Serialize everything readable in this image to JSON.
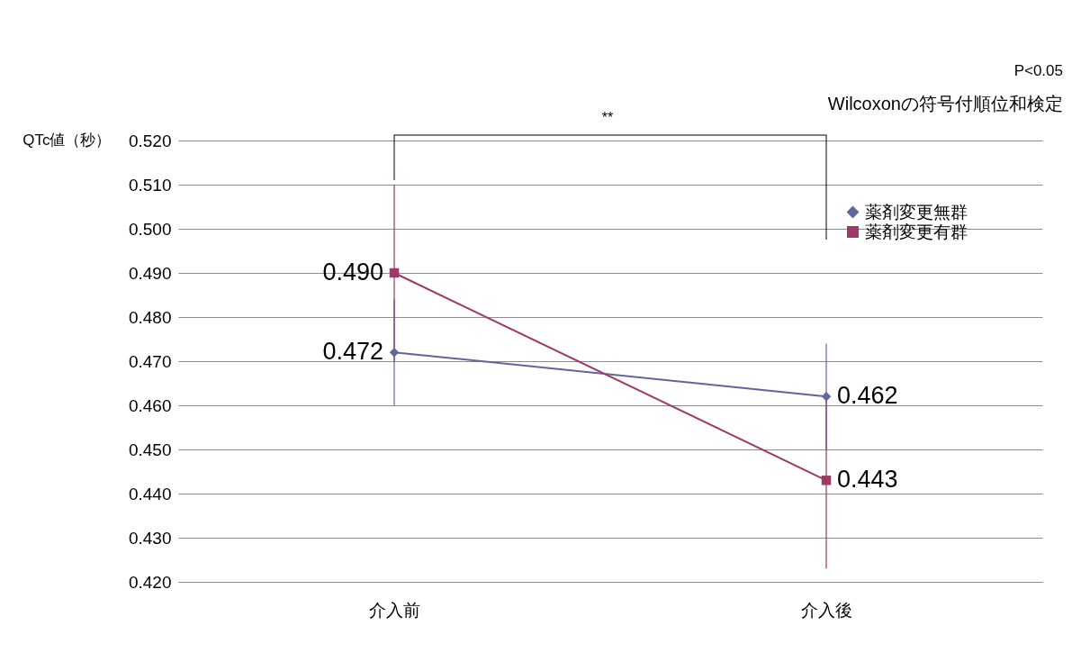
{
  "chart_data": {
    "type": "line",
    "ylabel": "QTc値（秒）",
    "categories": [
      "介入前",
      "介入後"
    ],
    "series": [
      {
        "name": "薬剤変更無群",
        "color": "#6264a0",
        "marker": "diamond",
        "values": [
          0.472,
          0.462
        ],
        "errors": [
          0.012,
          0.012
        ],
        "value_labels": [
          "0.472",
          "0.462"
        ]
      },
      {
        "name": "薬剤変更有群",
        "color": "#9e3a68",
        "marker": "square",
        "values": [
          0.49,
          0.443
        ],
        "errors": [
          0.02,
          0.02
        ],
        "value_labels": [
          "0.490",
          "0.443"
        ]
      }
    ],
    "ylim": [
      0.42,
      0.52
    ],
    "yticks": [
      {
        "value": 0.42,
        "label": "0.420"
      },
      {
        "value": 0.43,
        "label": "0.430"
      },
      {
        "value": 0.44,
        "label": "0.440"
      },
      {
        "value": 0.45,
        "label": "0.450"
      },
      {
        "value": 0.46,
        "label": "0.460"
      },
      {
        "value": 0.47,
        "label": "0.470"
      },
      {
        "value": 0.48,
        "label": "0.480"
      },
      {
        "value": 0.49,
        "label": "0.490"
      },
      {
        "value": 0.5,
        "label": "0.500"
      },
      {
        "value": 0.51,
        "label": "0.510"
      },
      {
        "value": 0.52,
        "label": "0.520"
      }
    ],
    "grid": "y",
    "legend": "top right",
    "annotations": [
      "**",
      "P<0.05",
      "Wilcoxonの符号付順位和検定"
    ]
  }
}
